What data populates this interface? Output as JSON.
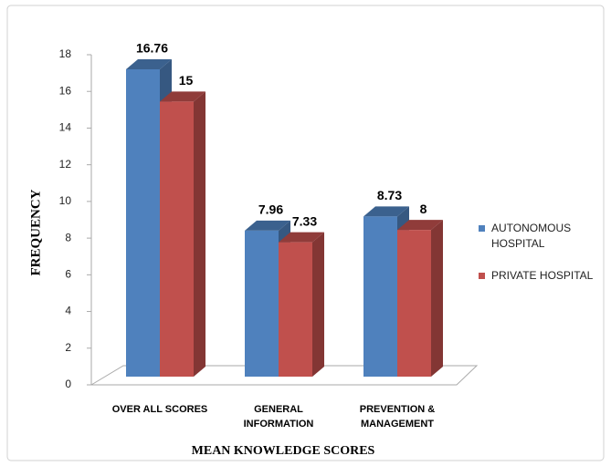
{
  "chart_data": {
    "type": "bar3d",
    "x_label": "MEAN KNOWLEDGE SCORES",
    "y_label": "FREQUENCY",
    "categories": [
      "OVER ALL SCORES",
      "GENERAL INFORMATION",
      "PREVENTION & MANAGEMENT"
    ],
    "series": [
      {
        "name": "AUTONOMOUS HOSPITAL",
        "color": "#4f81bd",
        "values": [
          16.76,
          7.96,
          8.73
        ]
      },
      {
        "name": "PRIVATE HOSPITAL",
        "color": "#c0504d",
        "values": [
          15,
          7.33,
          8
        ]
      }
    ],
    "ylim": [
      0,
      18
    ],
    "yticks": [
      0,
      2,
      4,
      6,
      8,
      10,
      12,
      14,
      16,
      18
    ],
    "grid": false,
    "legend": "right"
  }
}
